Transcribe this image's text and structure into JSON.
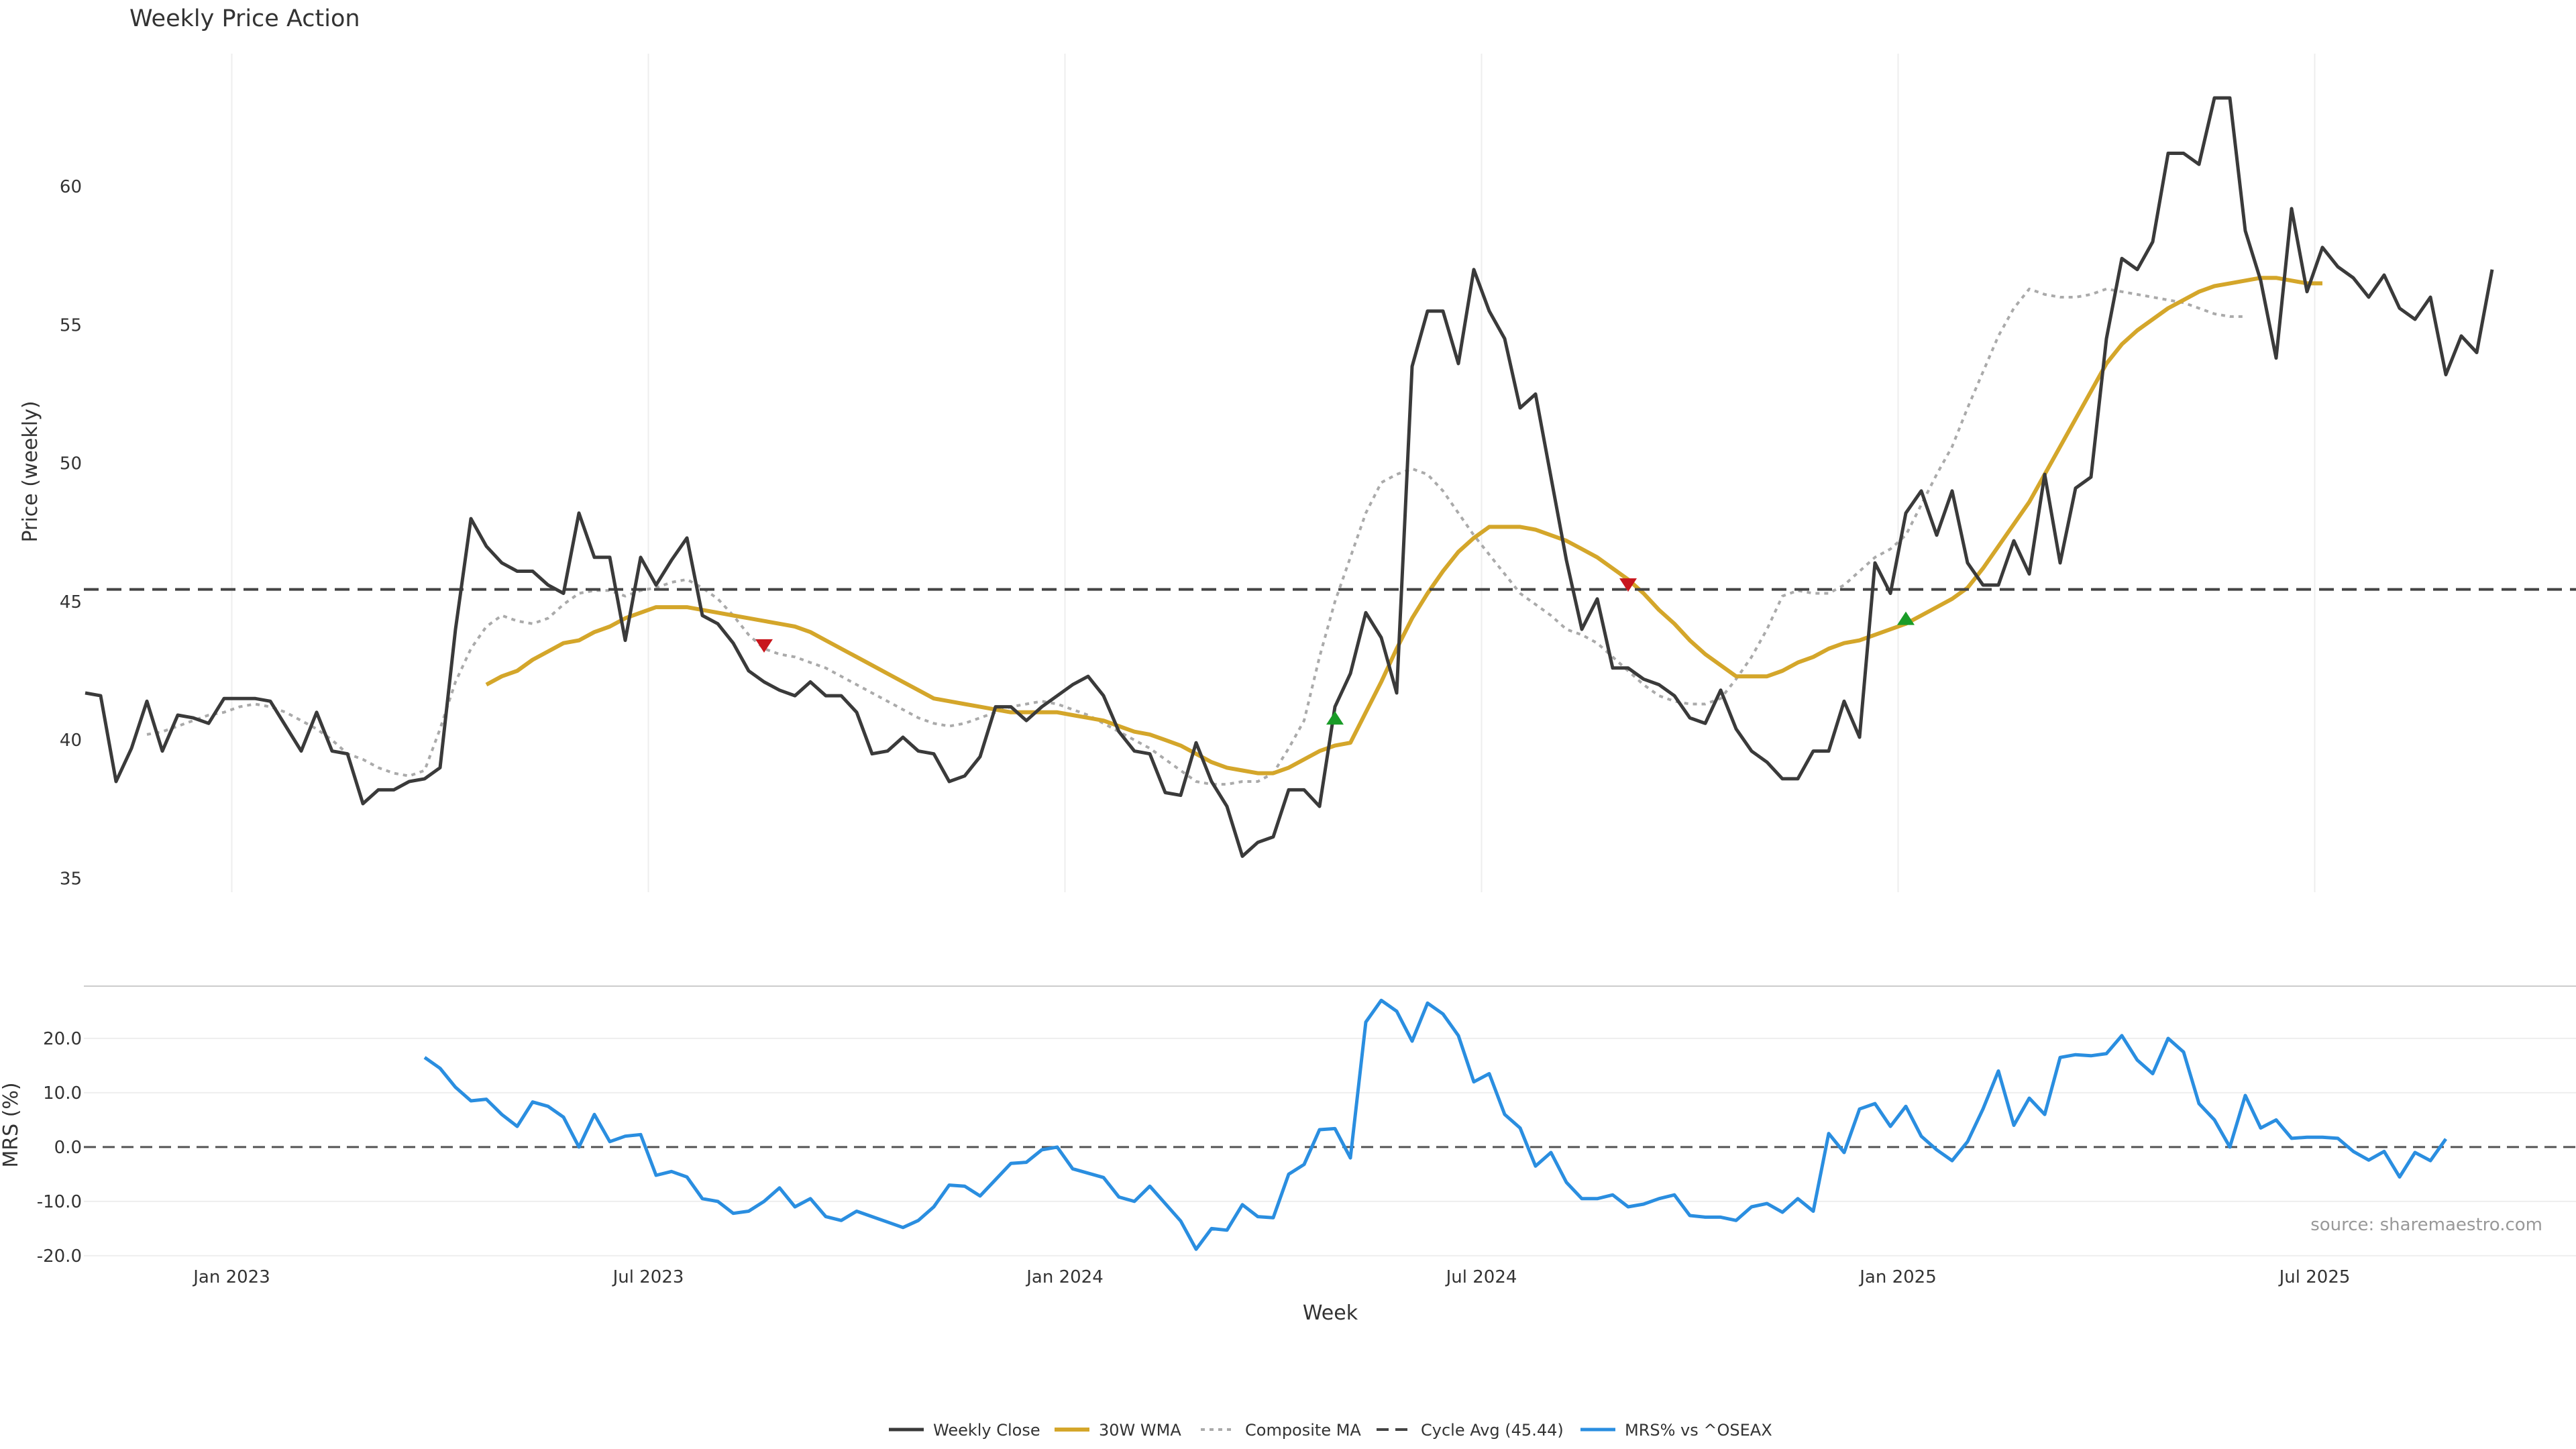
{
  "chart_data": {
    "type": "line",
    "title": "Weekly Price Action",
    "xlabel": "Week",
    "x_ticks": [
      "Jan 2023",
      "Jul 2023",
      "Jan 2024",
      "Jul 2024",
      "Jan 2025",
      "Jul 2025"
    ],
    "x_tick_weeks": [
      12.5,
      39.5,
      66.5,
      93.5,
      120.5,
      147.5
    ],
    "price_panel": {
      "ylabel": "Price (weekly)",
      "ylim": [
        34.5,
        64.8
      ],
      "yticks": [
        35,
        40,
        45,
        50,
        55,
        60
      ],
      "cycle_avg": 45.44
    },
    "mrs_panel": {
      "ylabel": "MRS (%)",
      "ylim": [
        -21,
        29
      ],
      "yticks": [
        "20.0",
        "10.0",
        "0.0",
        "-10.0",
        "-20.0"
      ],
      "ytick_values": [
        20,
        10,
        0,
        -10,
        -20
      ],
      "zero_line": 0
    },
    "series": [
      {
        "name": "Weekly Close",
        "color": "#3a3a3a",
        "start_week": 3,
        "values": [
          41.7,
          41.6,
          38.5,
          39.7,
          41.4,
          39.6,
          40.9,
          40.8,
          40.6,
          41.5,
          41.5,
          41.5,
          41.4,
          40.5,
          39.6,
          41.0,
          39.6,
          39.5,
          37.7,
          38.2,
          38.2,
          38.5,
          38.6,
          39.0,
          44.0,
          48.0,
          47.0,
          46.4,
          46.1,
          46.1,
          45.6,
          45.3,
          48.2,
          46.6,
          46.6,
          43.6,
          46.6,
          45.6,
          46.5,
          47.3,
          44.5,
          44.2,
          43.5,
          42.5,
          42.1,
          41.8,
          41.6,
          42.1,
          41.6,
          41.6,
          41.0,
          39.5,
          39.6,
          40.1,
          39.6,
          39.5,
          38.5,
          38.7,
          39.4,
          41.2,
          41.2,
          40.7,
          41.2,
          41.6,
          42.0,
          42.3,
          41.6,
          40.3,
          39.6,
          39.5,
          38.1,
          38.0,
          39.9,
          38.5,
          37.6,
          35.8,
          36.3,
          36.5,
          38.2,
          38.2,
          37.6,
          41.2,
          42.4,
          44.6,
          43.7,
          41.7,
          53.5,
          55.5,
          55.5,
          53.6,
          57.0,
          55.5,
          54.5,
          52.0,
          52.5,
          49.5,
          46.5,
          44.0,
          45.1,
          42.6,
          42.6,
          42.2,
          42.0,
          41.6,
          40.8,
          40.6,
          41.8,
          40.4,
          39.6,
          39.2,
          38.6,
          38.6,
          39.6,
          39.6,
          41.4,
          40.1,
          46.4,
          45.3,
          48.2,
          49.0,
          47.4,
          49.0,
          46.4,
          45.6,
          45.6,
          47.2,
          46.0,
          49.6,
          46.4,
          49.1,
          49.5,
          54.5,
          57.4,
          57.0,
          58.0,
          61.2,
          61.2,
          60.8,
          63.2,
          63.2,
          58.4,
          56.6,
          53.8,
          59.2,
          56.2,
          57.8,
          57.1,
          56.7,
          56.0,
          56.8,
          55.6,
          55.2,
          56.0,
          53.2,
          54.6,
          54.0,
          57.0
        ]
      },
      {
        "name": "30W WMA",
        "color": "#d4a62a",
        "start_week": 29,
        "values": [
          42.0,
          42.3,
          42.5,
          42.9,
          43.2,
          43.5,
          43.6,
          43.9,
          44.1,
          44.4,
          44.6,
          44.8,
          44.8,
          44.8,
          44.7,
          44.6,
          44.5,
          44.4,
          44.3,
          44.2,
          44.1,
          43.9,
          43.6,
          43.3,
          43.0,
          42.7,
          42.4,
          42.1,
          41.8,
          41.5,
          41.4,
          41.3,
          41.2,
          41.1,
          41.0,
          41.0,
          41.0,
          41.0,
          40.9,
          40.8,
          40.7,
          40.5,
          40.3,
          40.2,
          40.0,
          39.8,
          39.5,
          39.2,
          39.0,
          38.9,
          38.8,
          38.8,
          39.0,
          39.3,
          39.6,
          39.8,
          39.9,
          41.0,
          42.1,
          43.3,
          44.4,
          45.3,
          46.1,
          46.8,
          47.3,
          47.7,
          47.7,
          47.7,
          47.6,
          47.4,
          47.2,
          46.9,
          46.6,
          46.2,
          45.8,
          45.3,
          44.7,
          44.2,
          43.6,
          43.1,
          42.7,
          42.3,
          42.3,
          42.3,
          42.5,
          42.8,
          43.0,
          43.3,
          43.5,
          43.6,
          43.8,
          44.0,
          44.2,
          44.5,
          44.8,
          45.1,
          45.5,
          46.2,
          47.0,
          47.8,
          48.6,
          49.6,
          50.6,
          51.6,
          52.6,
          53.6,
          54.3,
          54.8,
          55.2,
          55.6,
          55.9,
          56.2,
          56.4,
          56.5,
          56.6,
          56.7,
          56.7,
          56.6,
          56.5,
          56.5
        ]
      },
      {
        "name": "Composite MA",
        "color": "#aaaaaa",
        "start_week": 7,
        "values": [
          40.2,
          40.3,
          40.5,
          40.7,
          40.9,
          41.0,
          41.2,
          41.3,
          41.2,
          41.0,
          40.7,
          40.4,
          40.0,
          39.5,
          39.3,
          39.0,
          38.8,
          38.7,
          38.9,
          40.4,
          42.1,
          43.3,
          44.1,
          44.5,
          44.3,
          44.2,
          44.4,
          44.9,
          45.3,
          45.4,
          45.4,
          45.2,
          45.4,
          45.5,
          45.7,
          45.8,
          45.5,
          45.1,
          44.5,
          43.8,
          43.3,
          43.1,
          43.0,
          42.8,
          42.6,
          42.3,
          42.0,
          41.7,
          41.4,
          41.1,
          40.8,
          40.6,
          40.5,
          40.6,
          40.8,
          41.0,
          41.2,
          41.3,
          41.4,
          41.3,
          41.1,
          40.9,
          40.6,
          40.3,
          40.0,
          39.7,
          39.3,
          38.9,
          38.5,
          38.4,
          38.4,
          38.5,
          38.5,
          38.8,
          39.7,
          40.7,
          43.0,
          45.0,
          46.6,
          48.2,
          49.3,
          49.6,
          49.8,
          49.6,
          49.0,
          48.2,
          47.4,
          46.7,
          46.0,
          45.3,
          44.9,
          44.5,
          44.0,
          43.8,
          43.5,
          43.0,
          42.5,
          42.0,
          41.6,
          41.4,
          41.3,
          41.3,
          41.5,
          42.2,
          43.0,
          44.0,
          45.2,
          45.4,
          45.3,
          45.3,
          45.6,
          46.1,
          46.6,
          46.9,
          47.4,
          48.5,
          49.6,
          50.6,
          52.0,
          53.3,
          54.6,
          55.6,
          56.3,
          56.1,
          56.0,
          56.0,
          56.1,
          56.3,
          56.2,
          56.1,
          56.0,
          55.9,
          55.8,
          55.6,
          55.4,
          55.3,
          55.3
        ]
      },
      {
        "name": "Cycle Avg (45.44)",
        "color": "#444444",
        "value": 45.44
      },
      {
        "name": "MRS% vs ^OSEAX",
        "color": "#2a8ee0",
        "start_week": 25,
        "values": [
          16.5,
          14.5,
          11.0,
          8.5,
          8.8,
          6.0,
          3.8,
          8.3,
          7.5,
          5.5,
          0.0,
          6.0,
          1.0,
          2.0,
          2.3,
          -5.2,
          -4.5,
          -5.5,
          -9.5,
          -10.0,
          -12.2,
          -11.8,
          -10.0,
          -7.5,
          -11.0,
          -9.5,
          -12.8,
          -13.5,
          -11.8,
          -12.8,
          -13.8,
          -14.8,
          -13.5,
          -11.0,
          -7.0,
          -7.2,
          -9.0,
          -6.0,
          -3.0,
          -2.8,
          -0.5,
          0.0,
          -4.0,
          -4.8,
          -5.6,
          -9.2,
          -10.0,
          -7.2,
          -10.4,
          -13.6,
          -18.8,
          -15.0,
          -15.3,
          -10.6,
          -12.8,
          -13.0,
          -5.0,
          -3.2,
          3.2,
          3.4,
          -2.0,
          23.0,
          27.0,
          25.0,
          19.5,
          26.5,
          24.5,
          20.5,
          12.0,
          13.5,
          6.0,
          3.5,
          -3.5,
          -1.0,
          -6.5,
          -9.5,
          -9.5,
          -8.8,
          -11.0,
          -10.5,
          -9.5,
          -8.8,
          -12.6,
          -12.9,
          -12.9,
          -13.5,
          -11.0,
          -10.4,
          -12.0,
          -9.5,
          -11.8,
          2.5,
          -1.0,
          7.0,
          8.0,
          3.8,
          7.5,
          2.0,
          -0.5,
          -2.5,
          1.0,
          7.0,
          14.0,
          4.0,
          9.0,
          6.0,
          16.5,
          17.0,
          16.8,
          17.2,
          20.5,
          16.0,
          13.5,
          20.0,
          17.5,
          8.0,
          5.0,
          0.0,
          9.5,
          3.5,
          5.0,
          1.6,
          1.8,
          1.8,
          1.6,
          -0.8,
          -2.4,
          -0.8,
          -5.5,
          -1.0,
          -2.5,
          1.5
        ]
      }
    ],
    "markers": [
      {
        "type": "sell",
        "symbol": "▼",
        "color": "#c8161d",
        "week": 47,
        "value": 43.4
      },
      {
        "type": "buy",
        "symbol": "▲",
        "color": "#1a9c28",
        "week": 84,
        "value": 40.8
      },
      {
        "type": "sell",
        "symbol": "▼",
        "color": "#c8161d",
        "week": 103,
        "value": 45.6
      },
      {
        "type": "buy",
        "symbol": "▲",
        "color": "#1a9c28",
        "week": 121,
        "value": 44.4
      }
    ],
    "annotation": "source: sharemaestro.com",
    "legend_position": "bottom-center"
  }
}
